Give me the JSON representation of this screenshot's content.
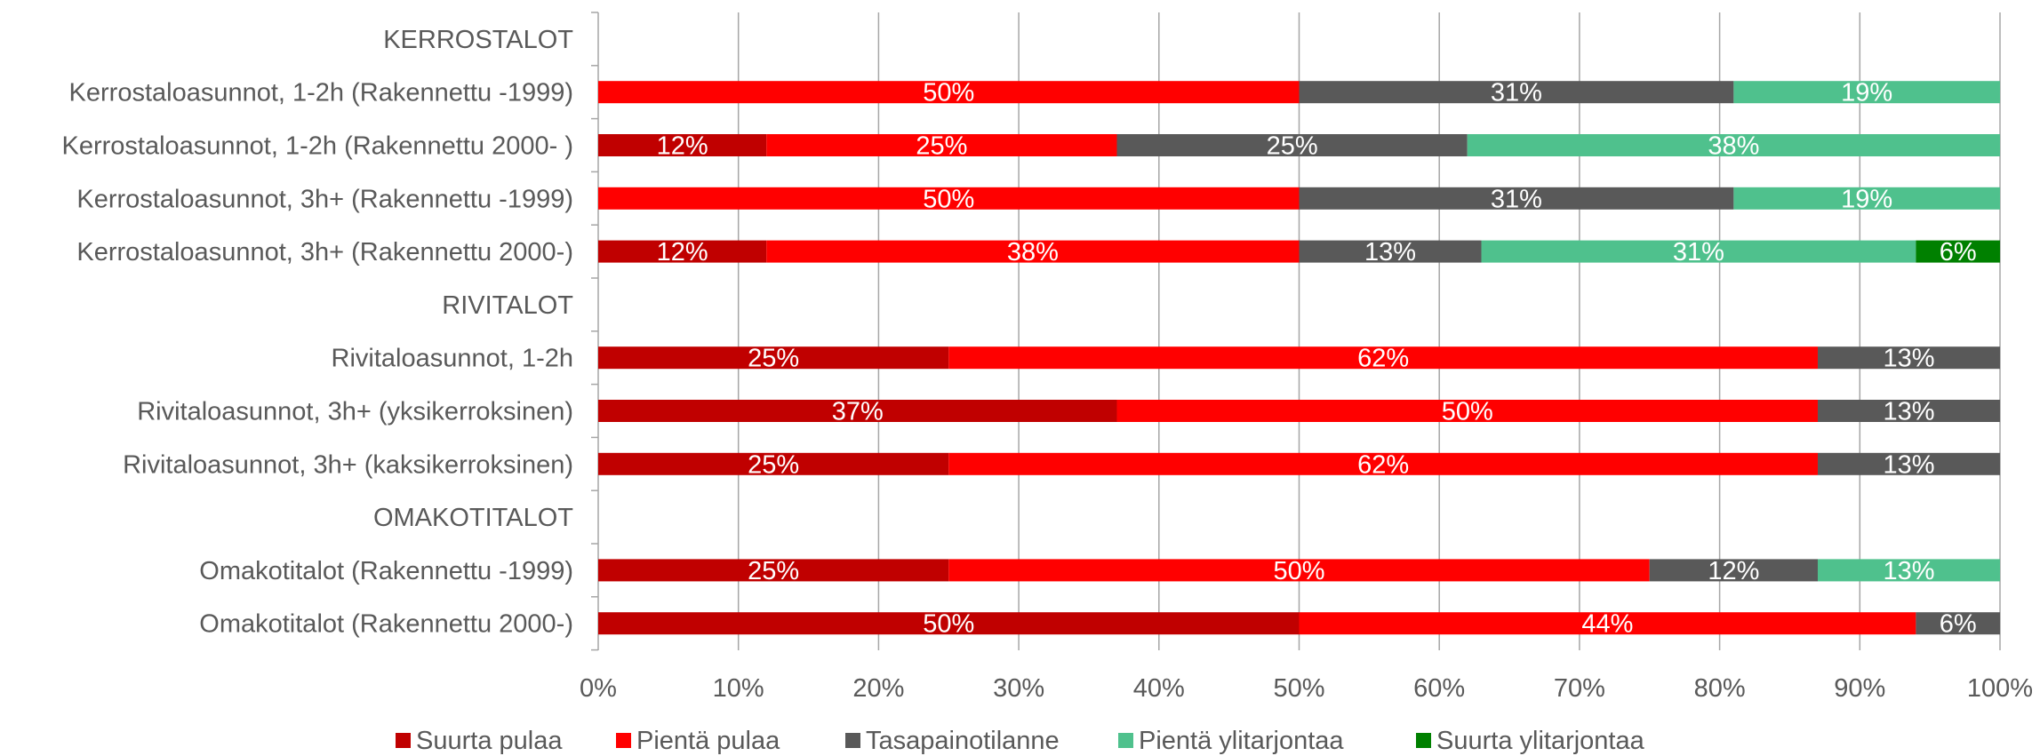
{
  "chart_data": {
    "type": "bar",
    "orientation": "horizontal",
    "stacked": true,
    "percent_stacked": true,
    "categories": [
      "KERROSTALOT",
      "Kerrostaloasunnot, 1-2h (Rakennettu -1999)",
      "Kerrostaloasunnot, 1-2h (Rakennettu 2000- )",
      "Kerrostaloasunnot, 3h+ (Rakennettu -1999)",
      "Kerrostaloasunnot, 3h+ (Rakennettu 2000-)",
      "RIVITALOT",
      "Rivitaloasunnot, 1-2h",
      "Rivitaloasunnot, 3h+ (yksikerroksinen)",
      "Rivitaloasunnot, 3h+ (kaksikerroksinen)",
      "OMAKOTITALOT",
      "Omakotitalot (Rakennettu -1999)",
      "Omakotitalot (Rakennettu 2000-)"
    ],
    "series": [
      {
        "name": "Suurta pulaa",
        "color": "#c00000",
        "values": [
          null,
          0,
          12,
          0,
          12,
          null,
          25,
          37,
          25,
          null,
          25,
          50
        ],
        "labels": [
          "",
          "",
          "12%",
          "",
          "12%",
          "",
          "25%",
          "37%",
          "25%",
          "",
          "25%",
          "50%"
        ]
      },
      {
        "name": "Pientä pulaa",
        "color": "#ff0000",
        "values": [
          null,
          50,
          25,
          50,
          38,
          null,
          62,
          50,
          62,
          null,
          50,
          44
        ],
        "labels": [
          "",
          "50%",
          "25%",
          "50%",
          "38%",
          "",
          "62%",
          "50%",
          "62%",
          "",
          "50%",
          "44%"
        ]
      },
      {
        "name": "Tasapainotilanne",
        "color": "#595959",
        "values": [
          null,
          31,
          25,
          31,
          13,
          null,
          13,
          13,
          13,
          null,
          12,
          6
        ],
        "labels": [
          "",
          "31%",
          "25%",
          "31%",
          "13%",
          "",
          "13%",
          "13%",
          "13%",
          "",
          "12%",
          "6%"
        ]
      },
      {
        "name": "Pientä ylitarjontaa",
        "color": "#4fc18d",
        "values": [
          null,
          19,
          38,
          19,
          31,
          null,
          0,
          0,
          0,
          null,
          13,
          0
        ],
        "labels": [
          "",
          "19%",
          "38%",
          "19%",
          "31%",
          "",
          "",
          "",
          "",
          "",
          "13%",
          ""
        ]
      },
      {
        "name": "Suurta ylitarjontaa",
        "color": "#008000",
        "values": [
          null,
          0,
          0,
          0,
          6,
          null,
          0,
          0,
          0,
          null,
          0,
          0
        ],
        "labels": [
          "",
          "",
          "",
          "",
          "6%",
          "",
          "",
          "",
          "",
          "",
          "",
          ""
        ]
      }
    ],
    "xlim": [
      0,
      100
    ],
    "xticks": [
      "0%",
      "10%",
      "20%",
      "30%",
      "40%",
      "50%",
      "60%",
      "70%",
      "80%",
      "90%",
      "100%"
    ],
    "grid": true,
    "legend": "bottom",
    "title": "",
    "xlabel": "",
    "ylabel": ""
  }
}
